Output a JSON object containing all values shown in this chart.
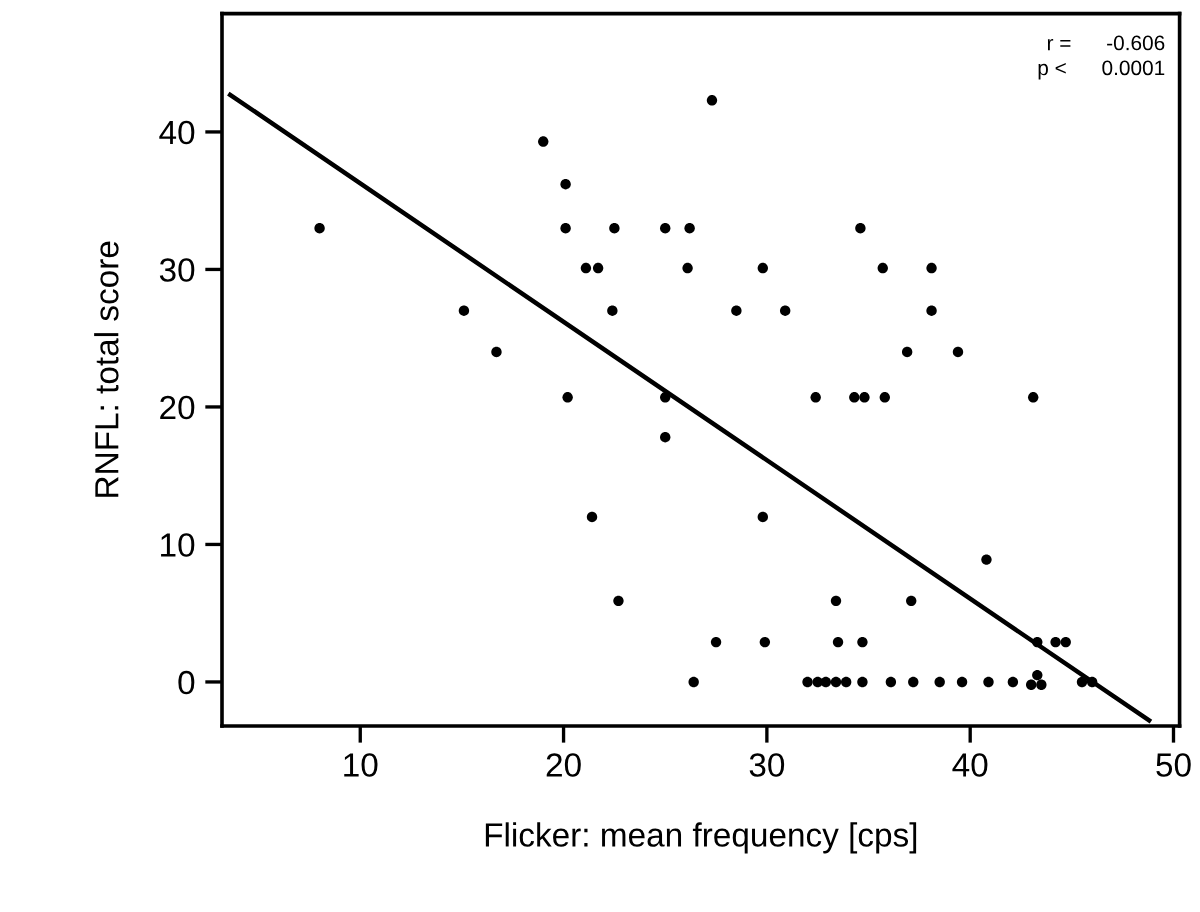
{
  "chart_data": {
    "type": "scatter",
    "xlabel": "Flicker: mean frequency [cps]",
    "ylabel": "RNFL: total score",
    "annotations": [
      "r =      -0.606",
      "p <      0.0001"
    ],
    "xlim": [
      3.2,
      50.3
    ],
    "ylim": [
      -3.2,
      48.6
    ],
    "xticks": [
      10,
      20,
      30,
      40,
      50
    ],
    "yticks": [
      0,
      10,
      20,
      30,
      40
    ],
    "series": [
      {
        "marker": "circle",
        "color": "#000000",
        "x": [
          8.0,
          15.1,
          16.7,
          19.0,
          20.1,
          20.1,
          20.2,
          21.1,
          21.7,
          21.4,
          22.5,
          22.4,
          22.7,
          25.0,
          26.2,
          26.1,
          25.0,
          25.0,
          26.4,
          27.3,
          29.8,
          28.5,
          30.9,
          34.6,
          35.7,
          38.1,
          38.1,
          36.9,
          39.4,
          32.4,
          34.3,
          34.8,
          35.8,
          43.1,
          29.8,
          40.8,
          33.4,
          37.1,
          27.5,
          29.9,
          33.5,
          34.7,
          43.3,
          44.2,
          44.7,
          32.0,
          32.5,
          32.9,
          33.4,
          33.9,
          34.7,
          36.1,
          37.2,
          38.5,
          39.6,
          40.9,
          42.1,
          43.3,
          43.0,
          43.5,
          45.5,
          46.0
        ],
        "values": [
          33.0,
          27.0,
          24.0,
          39.3,
          36.2,
          33.0,
          20.7,
          30.1,
          30.1,
          12.0,
          33.0,
          27.0,
          5.9,
          33.0,
          33.0,
          30.1,
          20.7,
          17.8,
          0,
          42.3,
          30.1,
          27.0,
          27.0,
          33.0,
          30.1,
          30.1,
          27.0,
          24.0,
          24.0,
          20.7,
          20.7,
          20.7,
          20.7,
          20.7,
          12.0,
          8.9,
          5.9,
          5.9,
          2.9,
          2.9,
          2.9,
          2.9,
          2.9,
          2.9,
          2.9,
          0,
          0,
          0,
          0,
          0,
          0,
          0,
          0,
          0,
          0,
          0,
          0,
          0.5,
          -0.2,
          -0.2,
          0,
          0
        ]
      },
      {
        "type": "line",
        "color": "#000000",
        "x": [
          3.6,
          48.8
        ],
        "values": [
          42.7,
          -2.8
        ]
      }
    ]
  }
}
